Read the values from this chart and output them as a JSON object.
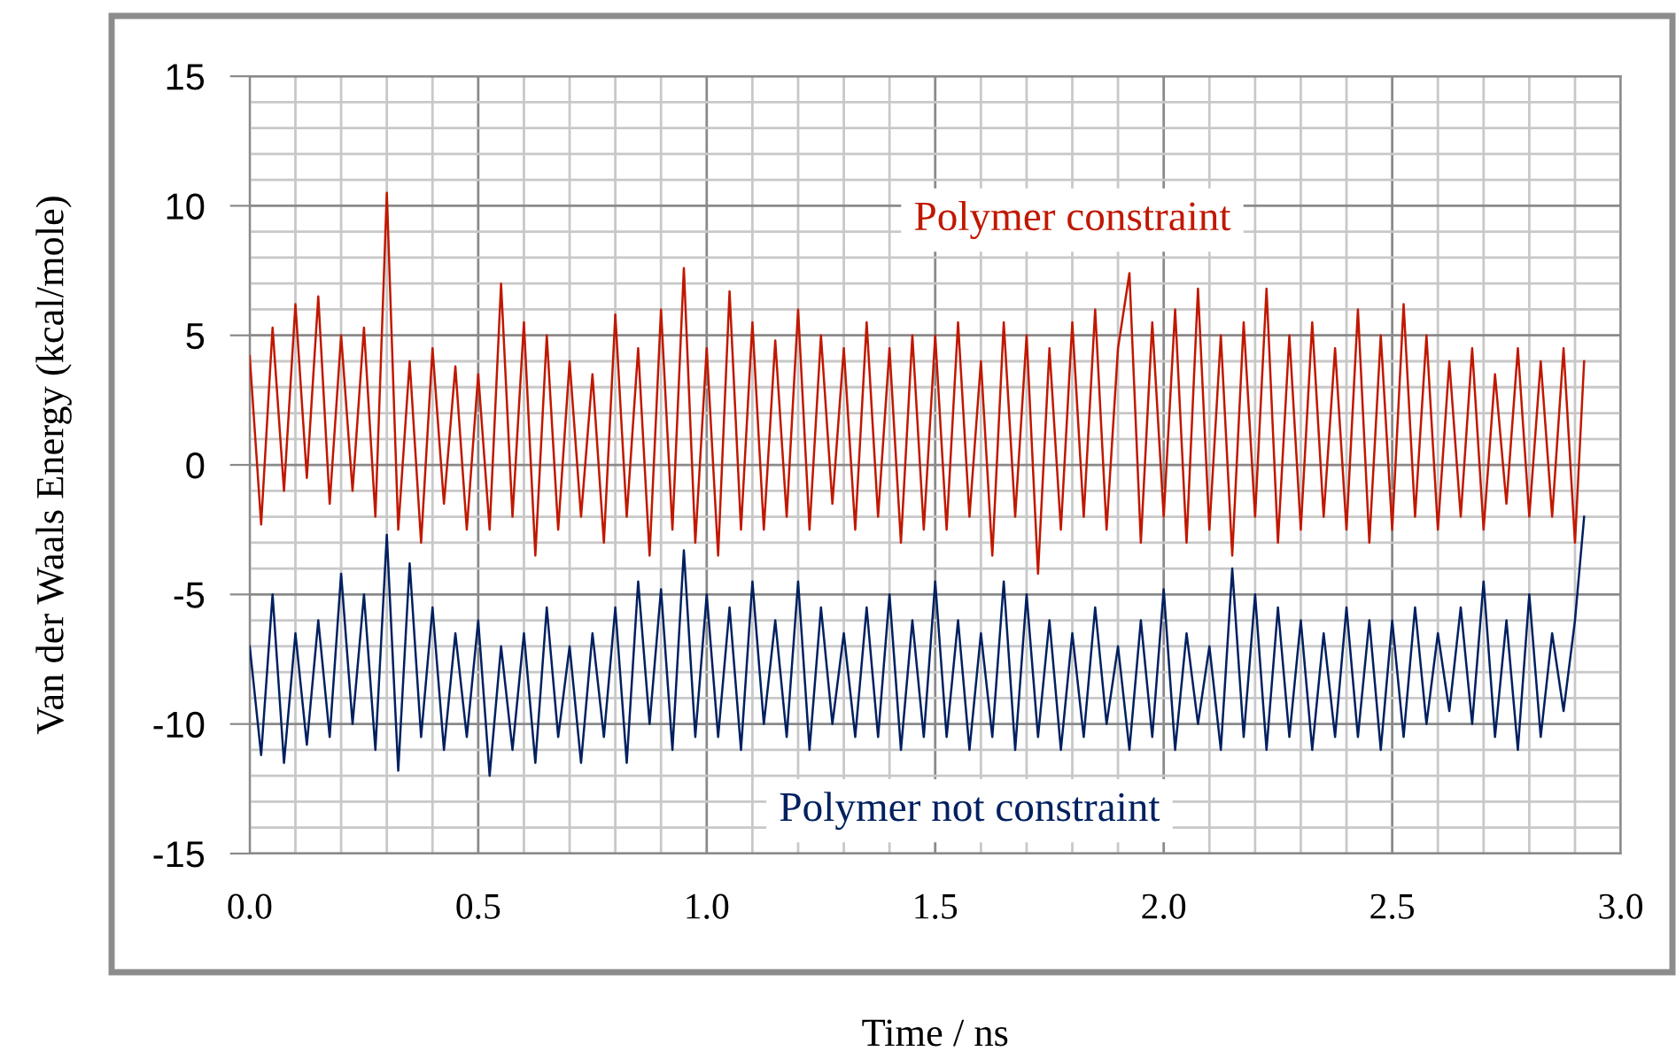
{
  "chart_data": {
    "type": "line",
    "xlabel": "Time / ns",
    "ylabel": "Van der Waals Energy (kcal/mole)",
    "x": [
      0,
      0.025,
      0.05,
      0.075,
      0.1,
      0.125,
      0.15,
      0.175,
      0.2,
      0.225,
      0.25,
      0.275,
      0.3,
      0.325,
      0.35,
      0.375,
      0.4,
      0.425,
      0.45,
      0.475,
      0.5,
      0.525,
      0.55,
      0.575,
      0.6,
      0.625,
      0.65,
      0.675,
      0.7,
      0.725,
      0.75,
      0.775,
      0.8,
      0.825,
      0.85,
      0.875,
      0.9,
      0.925,
      0.95,
      0.975,
      1.0,
      1.025,
      1.05,
      1.075,
      1.1,
      1.125,
      1.15,
      1.175,
      1.2,
      1.225,
      1.25,
      1.275,
      1.3,
      1.325,
      1.35,
      1.375,
      1.4,
      1.425,
      1.45,
      1.475,
      1.5,
      1.525,
      1.55,
      1.575,
      1.6,
      1.625,
      1.65,
      1.675,
      1.7,
      1.725,
      1.75,
      1.775,
      1.8,
      1.825,
      1.85,
      1.875,
      1.9,
      1.925,
      1.95,
      1.975,
      2.0,
      2.025,
      2.05,
      2.075,
      2.1,
      2.125,
      2.15,
      2.175,
      2.2,
      2.225,
      2.25,
      2.275,
      2.3,
      2.325,
      2.35,
      2.375,
      2.4,
      2.425,
      2.45,
      2.475,
      2.5,
      2.525,
      2.55,
      2.575,
      2.6,
      2.625,
      2.65,
      2.675,
      2.7,
      2.725,
      2.75,
      2.775,
      2.8,
      2.825,
      2.85,
      2.875,
      2.9,
      2.92
    ],
    "series": [
      {
        "name": "Polymer constraint",
        "color": "#c01800",
        "values": [
          4.2,
          -2.3,
          5.3,
          -1.0,
          6.2,
          -0.5,
          6.5,
          -1.5,
          5.0,
          -1.0,
          5.3,
          -2.0,
          10.5,
          -2.5,
          4.0,
          -3.0,
          4.5,
          -1.5,
          3.8,
          -2.5,
          3.5,
          -2.5,
          7.0,
          -2.0,
          5.5,
          -3.5,
          5.0,
          -2.5,
          4.0,
          -2.0,
          3.5,
          -3.0,
          5.8,
          -2.0,
          4.5,
          -3.5,
          6.0,
          -2.5,
          7.6,
          -3.0,
          4.5,
          -3.5,
          6.7,
          -2.5,
          5.5,
          -2.5,
          4.8,
          -2.0,
          6.0,
          -2.5,
          5.0,
          -1.5,
          4.5,
          -2.5,
          5.5,
          -2.0,
          4.5,
          -3.0,
          5.0,
          -2.5,
          5.0,
          -2.5,
          5.5,
          -2.0,
          4.0,
          -3.5,
          5.5,
          -2.0,
          5.0,
          -4.2,
          4.5,
          -2.5,
          5.5,
          -2.0,
          6.0,
          -2.5,
          4.5,
          7.4,
          -3.0,
          5.5,
          -2.0,
          6.0,
          -3.0,
          6.8,
          -2.5,
          5.0,
          -3.5,
          5.5,
          -2.0,
          6.8,
          -3.0,
          5.0,
          -2.5,
          5.5,
          -2.0,
          4.5,
          -2.5,
          6.0,
          -3.0,
          5.0,
          -2.5,
          6.2,
          -2.0,
          5.0,
          -2.5,
          4.0,
          -2.0,
          4.5,
          -2.5,
          3.5,
          -1.5,
          4.5,
          -2.0,
          4.0,
          -2.0,
          4.5,
          -3.0,
          4.0
        ]
      },
      {
        "name": "Polymer not constraint",
        "color": "#002060",
        "values": [
          -7.0,
          -11.2,
          -5.0,
          -11.5,
          -6.5,
          -10.8,
          -6.0,
          -10.5,
          -4.2,
          -10.0,
          -5.0,
          -11.0,
          -2.7,
          -11.8,
          -3.8,
          -10.5,
          -5.5,
          -11.0,
          -6.5,
          -10.5,
          -6.0,
          -12.0,
          -7.0,
          -11.0,
          -6.5,
          -11.5,
          -5.5,
          -10.5,
          -7.0,
          -11.5,
          -6.5,
          -10.5,
          -5.5,
          -11.5,
          -4.5,
          -10.0,
          -4.8,
          -11.0,
          -3.3,
          -10.5,
          -5.0,
          -10.5,
          -5.5,
          -11.0,
          -4.5,
          -10.0,
          -6.0,
          -10.5,
          -4.5,
          -11.0,
          -5.5,
          -10.0,
          -6.5,
          -10.5,
          -5.5,
          -10.5,
          -5.0,
          -11.0,
          -6.0,
          -10.5,
          -4.5,
          -10.5,
          -6.0,
          -11.0,
          -6.5,
          -10.5,
          -4.5,
          -11.0,
          -5.0,
          -10.5,
          -6.0,
          -11.0,
          -6.5,
          -10.5,
          -5.5,
          -10.0,
          -7.0,
          -11.0,
          -6.0,
          -10.5,
          -4.8,
          -11.0,
          -6.5,
          -10.0,
          -7.0,
          -11.0,
          -4.0,
          -10.5,
          -5.0,
          -11.0,
          -5.5,
          -10.5,
          -6.0,
          -11.0,
          -6.5,
          -10.5,
          -5.5,
          -10.5,
          -6.0,
          -11.0,
          -6.0,
          -10.5,
          -5.5,
          -10.0,
          -6.5,
          -9.5,
          -5.5,
          -10.0,
          -4.5,
          -10.5,
          -6.0,
          -11.0,
          -5.0,
          -10.5,
          -6.5,
          -9.5,
          -6.0,
          -2.0
        ]
      }
    ],
    "xlim": [
      0,
      3.0
    ],
    "xticks": [
      {
        "value": 0,
        "label": "0.0"
      },
      {
        "value": 0.5,
        "label": "0.5"
      },
      {
        "value": 1.0,
        "label": "1.0"
      },
      {
        "value": 1.5,
        "label": "1.5"
      },
      {
        "value": 2.0,
        "label": "2.0"
      },
      {
        "value": 2.5,
        "label": "2.5"
      },
      {
        "value": 3.0,
        "label": "3.0"
      }
    ],
    "ylim": [
      -15,
      15
    ],
    "yticks": [
      15,
      10,
      5,
      0,
      -5,
      -10,
      -15
    ],
    "grid": true,
    "legend": false,
    "marker": "none",
    "line_style": "solid"
  }
}
